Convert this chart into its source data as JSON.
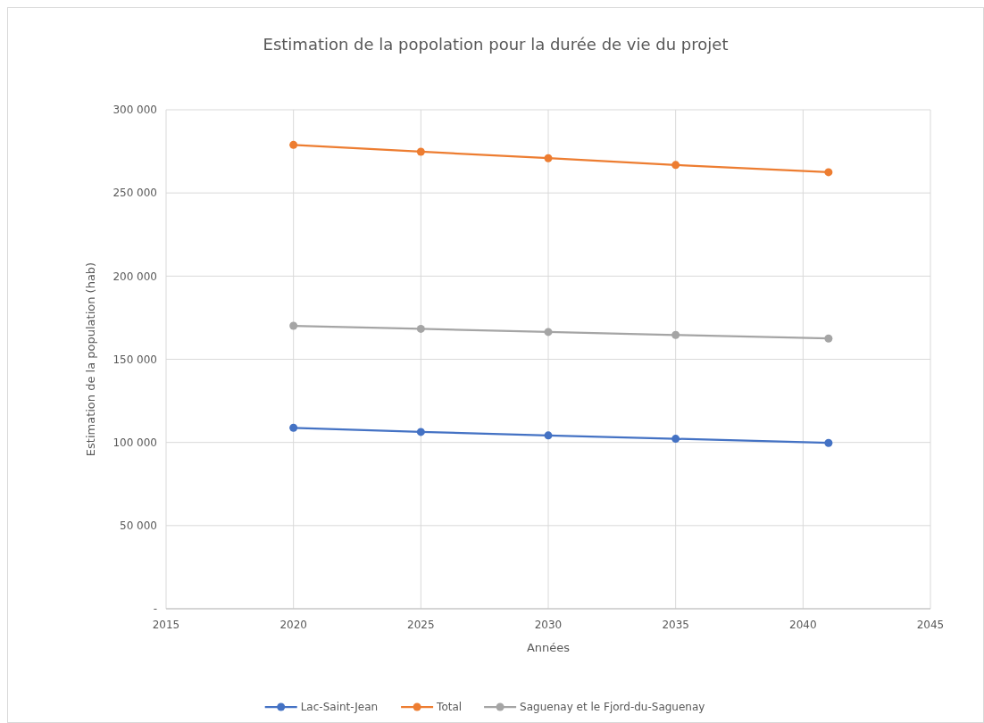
{
  "chart_data": {
    "type": "line",
    "title": "Estimation de la popolation pour la durée de vie du projet",
    "xlabel": "Années",
    "ylabel": "Estimation de la population (hab)",
    "x": [
      2020,
      2025,
      2030,
      2035,
      2041
    ],
    "series": [
      {
        "name": "Lac-Saint-Jean",
        "color": "#4472c4",
        "values": [
          108800,
          106300,
          104200,
          102200,
          99700
        ]
      },
      {
        "name": "Total",
        "color": "#ed7d31",
        "values": [
          278900,
          274800,
          270900,
          266800,
          262500
        ]
      },
      {
        "name": "Saguenay et le Fjord-du-Saguenay",
        "color": "#a5a5a5",
        "values": [
          170100,
          168300,
          166400,
          164600,
          162500
        ]
      }
    ],
    "xlim": [
      2015,
      2045
    ],
    "xticks": [
      2015,
      2020,
      2025,
      2030,
      2035,
      2040,
      2045
    ],
    "ylim": [
      0,
      300000
    ],
    "yticks": [
      {
        "value": 0,
        "label": "-"
      },
      {
        "value": 50000,
        "label": "50 000"
      },
      {
        "value": 100000,
        "label": "100 000"
      },
      {
        "value": 150000,
        "label": "150 000"
      },
      {
        "value": 200000,
        "label": "200 000"
      },
      {
        "value": 250000,
        "label": "250 000"
      },
      {
        "value": 300000,
        "label": "300 000"
      }
    ],
    "grid": true,
    "legend": "bottom",
    "marker": "circle",
    "line_style": "solid"
  }
}
